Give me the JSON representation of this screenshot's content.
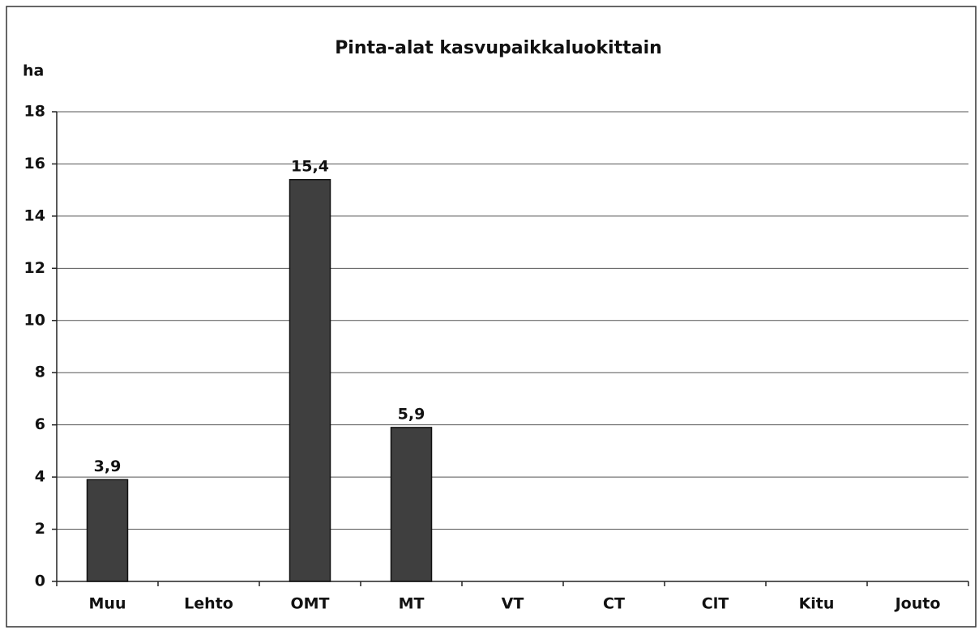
{
  "chart_data": {
    "type": "bar",
    "title": "Pinta-alat kasvupaikkaluokittain",
    "y_label": "ha",
    "categories": [
      "Muu",
      "Lehto",
      "OMT",
      "MT",
      "VT",
      "CT",
      "ClT",
      "Kitu",
      "Jouto"
    ],
    "values": [
      3.9,
      0,
      15.4,
      5.9,
      0,
      0,
      0,
      0,
      0
    ],
    "value_labels": [
      "3,9",
      null,
      "15,4",
      "5,9",
      null,
      null,
      null,
      null,
      null
    ],
    "color": "#3f3f3f",
    "ylim": [
      0,
      18
    ],
    "yticks": [
      0,
      2,
      4,
      6,
      8,
      10,
      12,
      14,
      16,
      18
    ],
    "grid": true
  }
}
